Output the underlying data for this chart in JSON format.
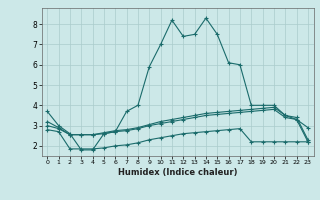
{
  "title": "",
  "xlabel": "Humidex (Indice chaleur)",
  "ylabel": "",
  "bg_color": "#cce8e8",
  "grid_color": "#aacccc",
  "line_color": "#1a6b6b",
  "xlim": [
    -0.5,
    23.5
  ],
  "ylim": [
    1.5,
    8.8
  ],
  "yticks": [
    2,
    3,
    4,
    5,
    6,
    7,
    8
  ],
  "xticks": [
    0,
    1,
    2,
    3,
    4,
    5,
    6,
    7,
    8,
    9,
    10,
    11,
    12,
    13,
    14,
    15,
    16,
    17,
    18,
    19,
    20,
    21,
    22,
    23
  ],
  "lines": [
    {
      "x": [
        0,
        1,
        2,
        3,
        4,
        5,
        6,
        7,
        8,
        9,
        10,
        11,
        12,
        13,
        14,
        15,
        16,
        17,
        18,
        19,
        20,
        21,
        22,
        23
      ],
      "y": [
        3.7,
        3.0,
        2.6,
        1.8,
        1.8,
        2.6,
        2.7,
        3.7,
        4.0,
        5.9,
        7.0,
        8.2,
        7.4,
        7.5,
        8.3,
        7.5,
        6.1,
        6.0,
        4.0,
        4.0,
        4.0,
        3.5,
        3.3,
        2.9
      ]
    },
    {
      "x": [
        0,
        1,
        2,
        3,
        4,
        5,
        6,
        7,
        8,
        9,
        10,
        11,
        12,
        13,
        14,
        15,
        16,
        17,
        18,
        19,
        20,
        21,
        22,
        23
      ],
      "y": [
        3.2,
        2.9,
        2.55,
        2.55,
        2.55,
        2.65,
        2.75,
        2.8,
        2.9,
        3.05,
        3.2,
        3.3,
        3.4,
        3.5,
        3.6,
        3.65,
        3.7,
        3.75,
        3.8,
        3.85,
        3.9,
        3.5,
        3.4,
        2.3
      ]
    },
    {
      "x": [
        0,
        1,
        2,
        3,
        4,
        5,
        6,
        7,
        8,
        9,
        10,
        11,
        12,
        13,
        14,
        15,
        16,
        17,
        18,
        19,
        20,
        21,
        22,
        23
      ],
      "y": [
        3.0,
        2.85,
        2.55,
        2.55,
        2.55,
        2.6,
        2.7,
        2.75,
        2.85,
        3.0,
        3.1,
        3.2,
        3.3,
        3.4,
        3.5,
        3.55,
        3.6,
        3.65,
        3.7,
        3.75,
        3.8,
        3.4,
        3.3,
        2.2
      ]
    },
    {
      "x": [
        0,
        1,
        2,
        3,
        4,
        5,
        6,
        7,
        8,
        9,
        10,
        11,
        12,
        13,
        14,
        15,
        16,
        17,
        18,
        19,
        20,
        21,
        22,
        23
      ],
      "y": [
        2.8,
        2.7,
        1.85,
        1.85,
        1.85,
        1.9,
        2.0,
        2.05,
        2.15,
        2.3,
        2.4,
        2.5,
        2.6,
        2.65,
        2.7,
        2.75,
        2.8,
        2.85,
        2.2,
        2.2,
        2.2,
        2.2,
        2.2,
        2.2
      ]
    }
  ]
}
